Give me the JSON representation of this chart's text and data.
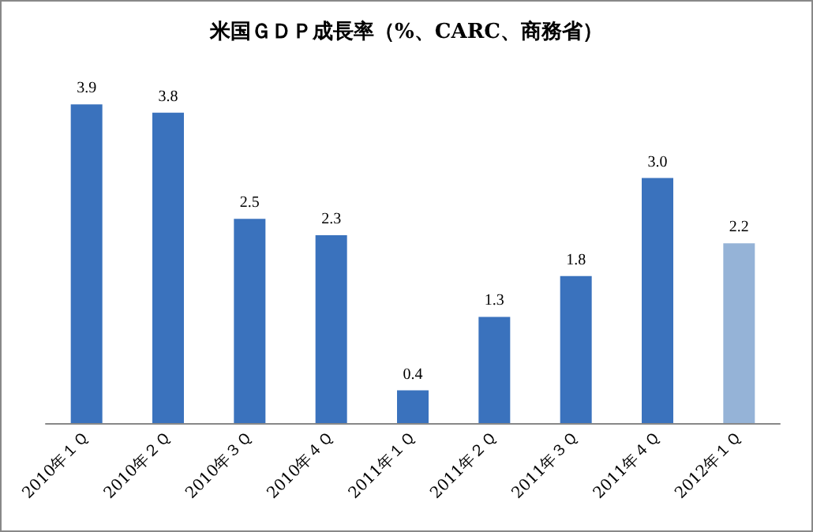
{
  "chart_data": {
    "type": "bar",
    "title": "米国ＧＤＰ成長率（%、CARC、商務省）",
    "categories": [
      "2010年１Ｑ",
      "2010年２Ｑ",
      "2010年３Ｑ",
      "2010年４Ｑ",
      "2011年１Ｑ",
      "2011年２Ｑ",
      "2011年３Ｑ",
      "2011年４Ｑ",
      "2012年１Ｑ"
    ],
    "values": [
      3.9,
      3.8,
      2.5,
      2.3,
      0.4,
      1.3,
      1.8,
      3.0,
      2.2
    ],
    "colors": [
      "#3a72bd",
      "#3a72bd",
      "#3a72bd",
      "#3a72bd",
      "#3a72bd",
      "#3a72bd",
      "#3a72bd",
      "#3a72bd",
      "#95b3d7"
    ],
    "value_labels": [
      "3.9",
      "3.8",
      "2.5",
      "2.3",
      "0.4",
      "1.3",
      "1.8",
      "3.0",
      "2.2"
    ],
    "grid": false
  }
}
